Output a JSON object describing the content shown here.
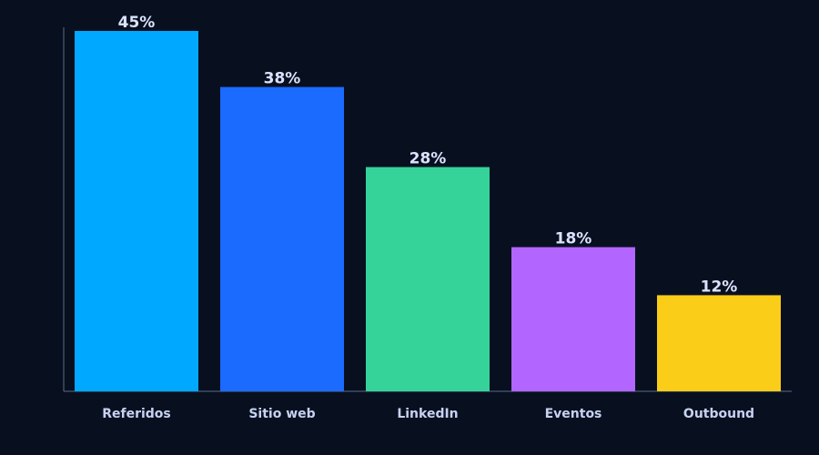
{
  "chart_data": {
    "type": "bar",
    "title": "",
    "xlabel": "",
    "ylabel": "",
    "categories": [
      "Referidos",
      "Sitio web",
      "LinkedIn",
      "Eventos",
      "Outbound"
    ],
    "values": [
      45,
      38,
      28,
      18,
      12
    ],
    "value_labels": [
      "45%",
      "38%",
      "28%",
      "18%",
      "12%"
    ],
    "colors": [
      "#00a8ff",
      "#1c6bff",
      "#35d39a",
      "#b266ff",
      "#f9cd18"
    ],
    "ylim": [
      0,
      47.5
    ],
    "grid": false,
    "legend": "none"
  },
  "theme": {
    "background": "#081020",
    "axis_color": "#5a6b8a",
    "value_label_color": "#dbe3ff",
    "category_label_color": "#c7d2f2"
  }
}
